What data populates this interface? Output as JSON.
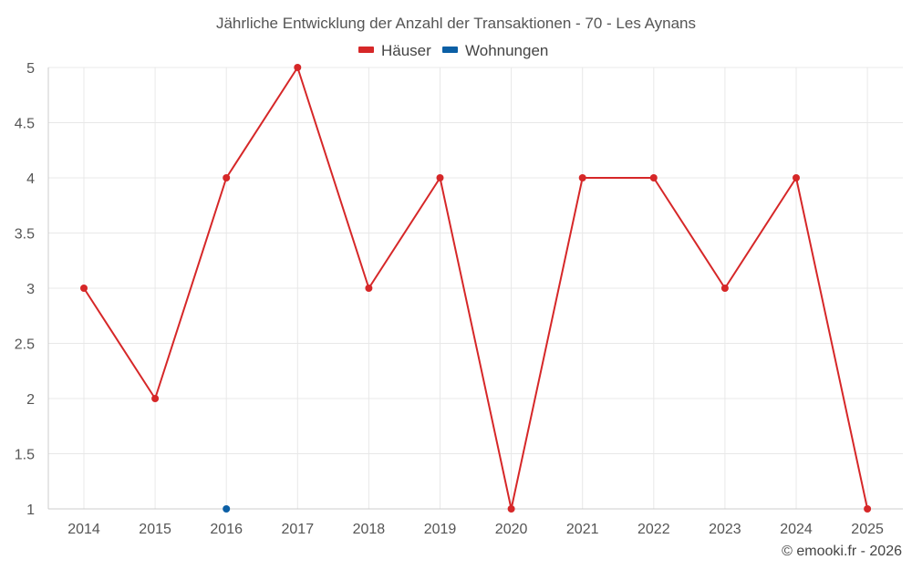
{
  "chart_data": {
    "type": "line",
    "title": "Jährliche Entwicklung der Anzahl der Transaktionen - 70 - Les Aynans",
    "categories": [
      "2014",
      "2015",
      "2016",
      "2017",
      "2018",
      "2019",
      "2020",
      "2021",
      "2022",
      "2023",
      "2024",
      "2025"
    ],
    "y_ticks": [
      "1",
      "1.5",
      "2",
      "2.5",
      "3",
      "3.5",
      "4",
      "4.5",
      "5"
    ],
    "ylim": [
      1,
      5
    ],
    "grid": true,
    "legend_position": "top-center",
    "series": [
      {
        "name": "Häuser",
        "color": "#d62728",
        "values": [
          3,
          2,
          4,
          5,
          3,
          4,
          1,
          4,
          4,
          3,
          4,
          1
        ]
      },
      {
        "name": "Wohnungen",
        "color": "#0b5fa5",
        "values": [
          null,
          null,
          1,
          null,
          null,
          null,
          null,
          null,
          null,
          null,
          null,
          null
        ]
      }
    ]
  },
  "credit": "© emooki.fr - 2026"
}
